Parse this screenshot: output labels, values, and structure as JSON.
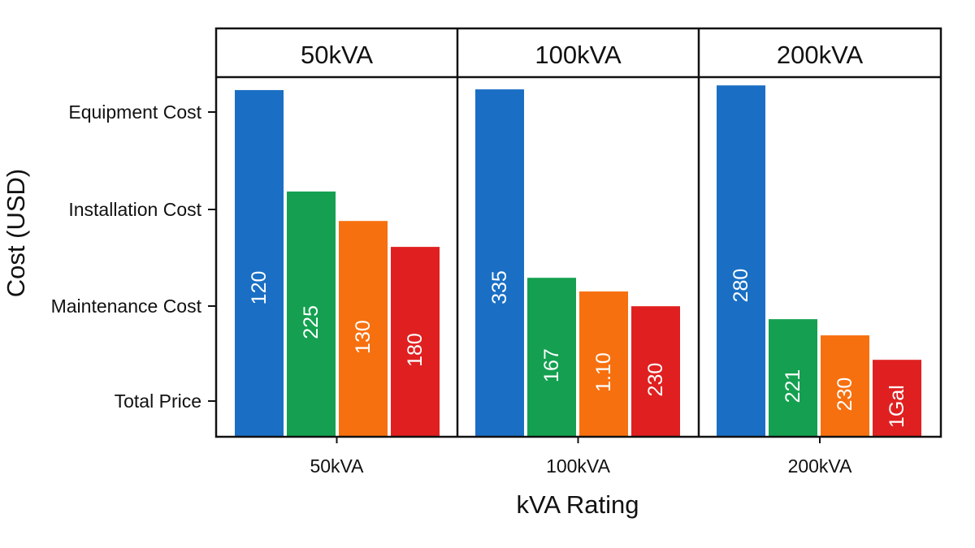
{
  "chart_data": {
    "type": "bar",
    "title": "",
    "xlabel": "kVA Rating",
    "ylabel": "Cost (USD)",
    "y_tick_labels": [
      "Equipment Cost",
      "Installation Cost",
      "Maintenance Cost",
      "Total Price"
    ],
    "categories": [
      "50kVA",
      "100kVA",
      "200kVA"
    ],
    "panel_titles": [
      "50kVA",
      "100kVA",
      "200kVA"
    ],
    "grid": false,
    "legend": "none",
    "series_colors": [
      "#1a6fc4",
      "#14a050",
      "#f7700f",
      "#e02020"
    ],
    "bar_labels": [
      [
        "120",
        "225",
        "130",
        "180"
      ],
      [
        "335",
        "167",
        "1.10",
        "230"
      ],
      [
        "280",
        "221",
        "230",
        "1Gal"
      ]
    ],
    "bar_levels_fraction_of_panel": [
      [
        0.964,
        0.682,
        0.6,
        0.528
      ],
      [
        0.966,
        0.442,
        0.404,
        0.363
      ],
      [
        0.977,
        0.327,
        0.282,
        0.214
      ]
    ]
  }
}
